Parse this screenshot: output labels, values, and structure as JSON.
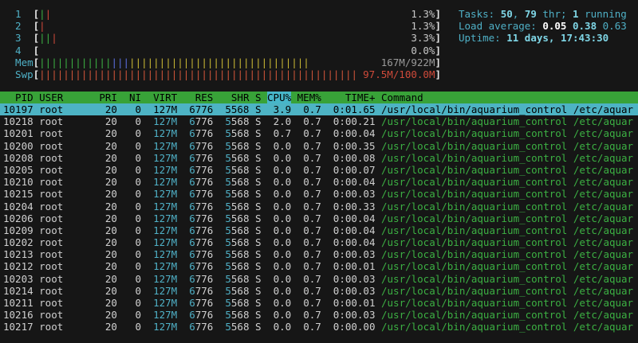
{
  "header": {
    "meter_brackets": [
      "[",
      "]"
    ],
    "meters": [
      {
        "label": "1",
        "segments": [
          {
            "text": "|",
            "color": "#3cb043"
          },
          {
            "text": "|",
            "color": "#d04a3a"
          }
        ],
        "value": "1.3%",
        "value_color": "#c8c8c8"
      },
      {
        "label": "2",
        "segments": [
          {
            "text": "|",
            "color": "#d04a3a"
          }
        ],
        "value": "1.3%",
        "value_color": "#c8c8c8"
      },
      {
        "label": "3",
        "segments": [
          {
            "text": "||",
            "color": "#3cb043"
          },
          {
            "text": "|",
            "color": "#d04a3a"
          }
        ],
        "value": "3.3%",
        "value_color": "#c8c8c8"
      },
      {
        "label": "4",
        "segments": [],
        "value": "0.0%",
        "value_color": "#c8c8c8"
      },
      {
        "label": "Mem",
        "segments": [
          {
            "text": "||||||||||||",
            "color": "#3cb043"
          },
          {
            "text": "|||",
            "color": "#5b6ee0"
          },
          {
            "text": "||||||||||||||||||||||||||||||",
            "color": "#c9b834"
          }
        ],
        "value": "167M/922M",
        "value_color": "#9a9a9a"
      },
      {
        "label": "Swp",
        "segments": [
          {
            "text": "|||||||||||||||||||||||||||||||||||||||||||||||||||||",
            "color": "#d0553a"
          }
        ],
        "value": "97.5M/100.0M",
        "value_color": "#d04a3a"
      }
    ],
    "summary": [
      [
        {
          "text": "Tasks: ",
          "color": "#4fb0c6",
          "bold": false
        },
        {
          "text": "50",
          "color": "#7fd6e6",
          "bold": true
        },
        {
          "text": ", ",
          "color": "#4fb0c6",
          "bold": false
        },
        {
          "text": "79",
          "color": "#7fd6e6",
          "bold": true
        },
        {
          "text": " thr; ",
          "color": "#4fb0c6",
          "bold": false
        },
        {
          "text": "1",
          "color": "#7fd6e6",
          "bold": true
        },
        {
          "text": " running",
          "color": "#4fb0c6",
          "bold": false
        }
      ],
      [
        {
          "text": "Load average: ",
          "color": "#4fb0c6",
          "bold": false
        },
        {
          "text": "0.05 ",
          "color": "#ffffff",
          "bold": true
        },
        {
          "text": "0.38 ",
          "color": "#7fd6e6",
          "bold": true
        },
        {
          "text": "0.63",
          "color": "#4fb0c6",
          "bold": false
        }
      ],
      [
        {
          "text": "Uptime: ",
          "color": "#4fb0c6",
          "bold": false
        },
        {
          "text": "11 days, 17:43:30",
          "color": "#7fd6e6",
          "bold": true
        }
      ]
    ]
  },
  "table": {
    "columns": [
      "PID",
      "USER",
      "PRI",
      "NI",
      "VIRT",
      "RES",
      "SHR",
      "S",
      "CPU%",
      "MEM%",
      "TIME+",
      "Command"
    ],
    "sort_column": 8,
    "selected_row": 0,
    "rows": [
      [
        "10197",
        "root",
        "20",
        "0",
        "127M",
        "6776",
        "5568",
        "S",
        "3.9",
        "0.7",
        "0:01.65",
        "/usr/local/bin/aquarium_control /etc/aquar"
      ],
      [
        "10218",
        "root",
        "20",
        "0",
        "127M",
        "6776",
        "5568",
        "S",
        "2.0",
        "0.7",
        "0:00.21",
        "/usr/local/bin/aquarium_control /etc/aquar"
      ],
      [
        "10201",
        "root",
        "20",
        "0",
        "127M",
        "6776",
        "5568",
        "S",
        "0.7",
        "0.7",
        "0:00.04",
        "/usr/local/bin/aquarium_control /etc/aquar"
      ],
      [
        "10200",
        "root",
        "20",
        "0",
        "127M",
        "6776",
        "5568",
        "S",
        "0.0",
        "0.7",
        "0:00.35",
        "/usr/local/bin/aquarium_control /etc/aquar"
      ],
      [
        "10208",
        "root",
        "20",
        "0",
        "127M",
        "6776",
        "5568",
        "S",
        "0.0",
        "0.7",
        "0:00.08",
        "/usr/local/bin/aquarium_control /etc/aquar"
      ],
      [
        "10205",
        "root",
        "20",
        "0",
        "127M",
        "6776",
        "5568",
        "S",
        "0.0",
        "0.7",
        "0:00.07",
        "/usr/local/bin/aquarium_control /etc/aquar"
      ],
      [
        "10210",
        "root",
        "20",
        "0",
        "127M",
        "6776",
        "5568",
        "S",
        "0.0",
        "0.7",
        "0:00.04",
        "/usr/local/bin/aquarium_control /etc/aquar"
      ],
      [
        "10215",
        "root",
        "20",
        "0",
        "127M",
        "6776",
        "5568",
        "S",
        "0.0",
        "0.7",
        "0:00.03",
        "/usr/local/bin/aquarium_control /etc/aquar"
      ],
      [
        "10204",
        "root",
        "20",
        "0",
        "127M",
        "6776",
        "5568",
        "S",
        "0.0",
        "0.7",
        "0:00.33",
        "/usr/local/bin/aquarium_control /etc/aquar"
      ],
      [
        "10206",
        "root",
        "20",
        "0",
        "127M",
        "6776",
        "5568",
        "S",
        "0.0",
        "0.7",
        "0:00.04",
        "/usr/local/bin/aquarium_control /etc/aquar"
      ],
      [
        "10209",
        "root",
        "20",
        "0",
        "127M",
        "6776",
        "5568",
        "S",
        "0.0",
        "0.7",
        "0:00.04",
        "/usr/local/bin/aquarium_control /etc/aquar"
      ],
      [
        "10202",
        "root",
        "20",
        "0",
        "127M",
        "6776",
        "5568",
        "S",
        "0.0",
        "0.7",
        "0:00.04",
        "/usr/local/bin/aquarium_control /etc/aquar"
      ],
      [
        "10213",
        "root",
        "20",
        "0",
        "127M",
        "6776",
        "5568",
        "S",
        "0.0",
        "0.7",
        "0:00.03",
        "/usr/local/bin/aquarium_control /etc/aquar"
      ],
      [
        "10212",
        "root",
        "20",
        "0",
        "127M",
        "6776",
        "5568",
        "S",
        "0.0",
        "0.7",
        "0:00.01",
        "/usr/local/bin/aquarium_control /etc/aquar"
      ],
      [
        "10203",
        "root",
        "20",
        "0",
        "127M",
        "6776",
        "5568",
        "S",
        "0.0",
        "0.7",
        "0:00.03",
        "/usr/local/bin/aquarium_control /etc/aquar"
      ],
      [
        "10214",
        "root",
        "20",
        "0",
        "127M",
        "6776",
        "5568",
        "S",
        "0.0",
        "0.7",
        "0:00.03",
        "/usr/local/bin/aquarium_control /etc/aquar"
      ],
      [
        "10211",
        "root",
        "20",
        "0",
        "127M",
        "6776",
        "5568",
        "S",
        "0.0",
        "0.7",
        "0:00.01",
        "/usr/local/bin/aquarium_control /etc/aquar"
      ],
      [
        "10216",
        "root",
        "20",
        "0",
        "127M",
        "6776",
        "5568",
        "S",
        "0.0",
        "0.7",
        "0:00.03",
        "/usr/local/bin/aquarium_control /etc/aquar"
      ],
      [
        "10217",
        "root",
        "20",
        "0",
        "127M",
        "6776",
        "5568",
        "S",
        "0.0",
        "0.7",
        "0:00.00",
        "/usr/local/bin/aquarium_control /etc/aquar"
      ]
    ]
  }
}
